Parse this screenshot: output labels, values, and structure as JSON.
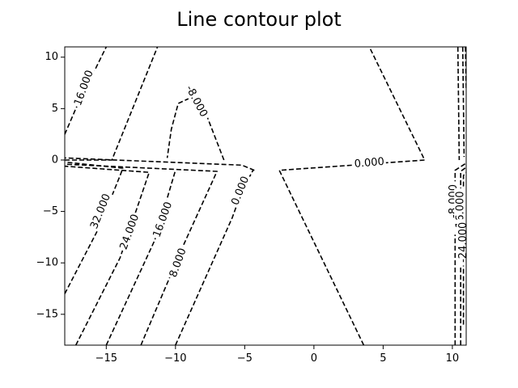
{
  "chart_data": {
    "type": "contour",
    "title": "Line contour plot",
    "xlabel": "",
    "ylabel": "",
    "xlim": [
      -18,
      11
    ],
    "ylim": [
      -18,
      11
    ],
    "xticks": [
      -15,
      -10,
      -5,
      0,
      5,
      10
    ],
    "yticks": [
      10,
      5,
      0,
      -5,
      -10,
      -15
    ],
    "xtick_labels": [
      "−15",
      "−10",
      "−5",
      "0",
      "5",
      "10"
    ],
    "ytick_labels": [
      "10",
      "5",
      "0",
      "−5",
      "−10",
      "−15"
    ],
    "line_style": "dashed",
    "line_color": "#000000",
    "grid": false,
    "contours": [
      {
        "level_label": "32.000",
        "points": [
          [
            -18,
            -13
          ],
          [
            -15.5,
            -6.5
          ],
          [
            -14,
            -1.5
          ],
          [
            -13.8,
            -0.8
          ],
          [
            -18,
            -0.2
          ]
        ]
      },
      {
        "level_label": "24.000",
        "points": [
          [
            -17.2,
            -18
          ],
          [
            -14,
            -9.5
          ],
          [
            -11.9,
            -1.2
          ],
          [
            -18,
            -0.6
          ]
        ]
      },
      {
        "level_label": "16.000",
        "points": [
          [
            -18,
            2.5
          ],
          [
            -17.2,
            5
          ],
          [
            -15,
            11
          ]
        ]
      },
      {
        "level_label": "16.000",
        "points": [
          [
            -15,
            -18
          ],
          [
            -11.5,
            -7.8
          ],
          [
            -10,
            -1
          ]
        ]
      },
      {
        "level_label": "",
        "points": [
          [
            -18,
            0
          ],
          [
            -14.6,
            0
          ],
          [
            -11.3,
            11
          ]
        ]
      },
      {
        "level_label": "8.000",
        "points": [
          [
            -12.5,
            -18
          ],
          [
            -9.5,
            -8.5
          ],
          [
            -7,
            -1.1
          ],
          [
            -18,
            -0.4
          ]
        ]
      },
      {
        "level_label": "0.000",
        "points": [
          [
            -10,
            -18
          ],
          [
            -5.9,
            -5.6
          ],
          [
            -5.2,
            -3
          ],
          [
            -4.4,
            -1
          ]
        ]
      },
      {
        "level_label": "",
        "points": [
          [
            -4.3,
            -1
          ],
          [
            -5.2,
            -0.5
          ],
          [
            -18,
            0.2
          ]
        ]
      },
      {
        "level_label": "-8.000",
        "points": [
          [
            -6.5,
            0
          ],
          [
            -7.8,
            4.5
          ],
          [
            -8.2,
            5.5
          ],
          [
            -9,
            6
          ]
        ]
      },
      {
        "level_label": "",
        "points": [
          [
            -9,
            6
          ],
          [
            -9.8,
            5.5
          ],
          [
            -10.3,
            3
          ],
          [
            -10.6,
            0.2
          ]
        ]
      },
      {
        "level_label": "0.000",
        "points": [
          [
            3.6,
            -18
          ],
          [
            -2.5,
            -1
          ],
          [
            8,
            0
          ],
          [
            4,
            11
          ]
        ]
      },
      {
        "level_label": "-8.000",
        "points": [
          [
            10.2,
            -18
          ],
          [
            10.2,
            -1
          ],
          [
            11,
            -0.3
          ]
        ]
      },
      {
        "level_label": "-16.000",
        "points": [
          [
            10.6,
            -18
          ],
          [
            10.6,
            -1.1
          ],
          [
            11,
            -0.7
          ]
        ]
      },
      {
        "level_label": "-24.000",
        "points": [
          [
            10.8,
            -16
          ],
          [
            10.8,
            -1.5
          ],
          [
            11,
            -1.2
          ]
        ]
      },
      {
        "level_label": "",
        "points": [
          [
            10.4,
            11
          ],
          [
            10.5,
            0
          ]
        ]
      },
      {
        "level_label": "",
        "points": [
          [
            10.75,
            11
          ],
          [
            10.85,
            0.3
          ]
        ]
      },
      {
        "level_label": "",
        "points": [
          [
            10.95,
            11
          ],
          [
            11,
            7
          ]
        ]
      }
    ],
    "label_positions": [
      {
        "text": "16.000",
        "x": -16.6,
        "y": 7,
        "angle": -70
      },
      {
        "text": "32.000",
        "x": -15.4,
        "y": -5,
        "angle": -68
      },
      {
        "text": "24.000",
        "x": -13.3,
        "y": -7,
        "angle": -70
      },
      {
        "text": "16.000",
        "x": -10.9,
        "y": -5.8,
        "angle": -70
      },
      {
        "text": "8.000",
        "x": -9.8,
        "y": -10,
        "angle": -70
      },
      {
        "text": "0.000",
        "x": -5.3,
        "y": -3,
        "angle": -68
      },
      {
        "text": "-8.000",
        "x": -8.5,
        "y": 5.7,
        "angle": 62
      },
      {
        "text": "0.000",
        "x": 4,
        "y": -0.3,
        "angle": -5
      },
      {
        "text": "-8.000",
        "x": 10.1,
        "y": -4,
        "angle": -90
      },
      {
        "text": "-16.000",
        "x": 10.6,
        "y": -5,
        "angle": -90
      },
      {
        "text": "-24.000",
        "x": 10.8,
        "y": -8,
        "angle": -90
      }
    ]
  }
}
